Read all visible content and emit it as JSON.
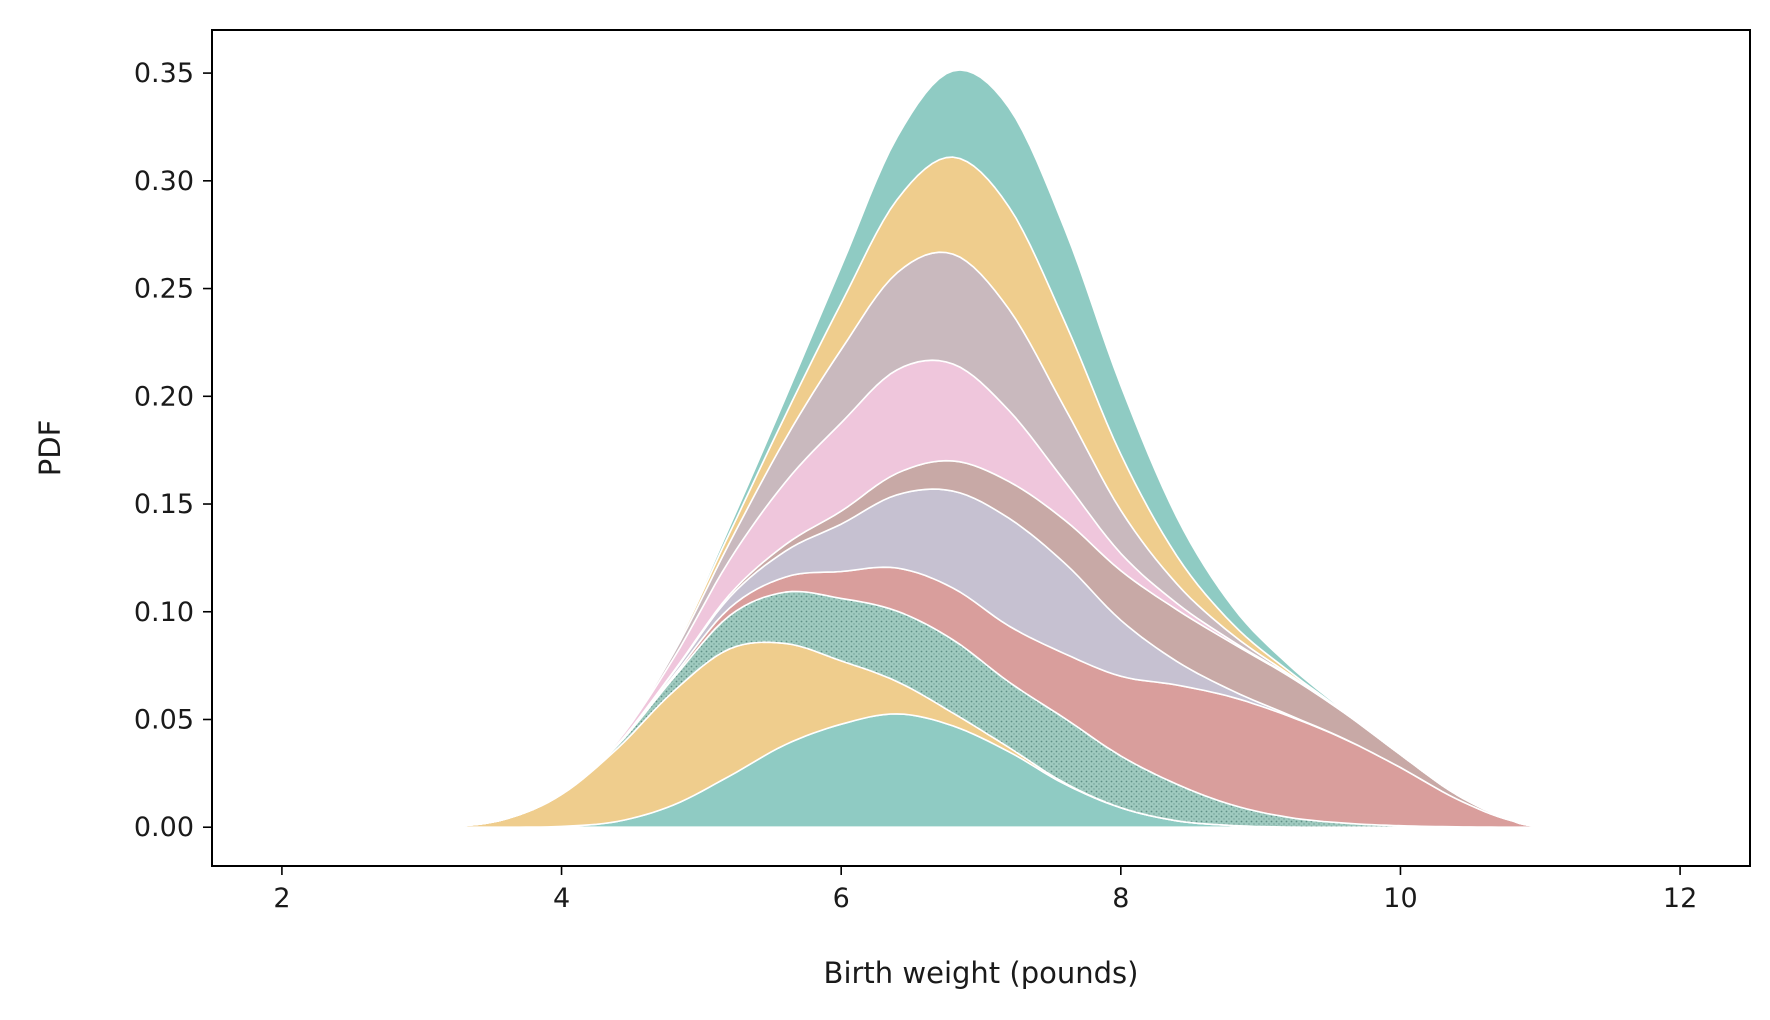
{
  "chart_data": {
    "type": "area",
    "stacked": true,
    "title": "",
    "xlabel": "Birth weight (pounds)",
    "ylabel": "PDF",
    "xlim": [
      1.5,
      12.5
    ],
    "ylim": [
      -0.018,
      0.37
    ],
    "xticks": [
      2,
      4,
      6,
      8,
      10,
      12
    ],
    "yticks": [
      0.0,
      0.05,
      0.1,
      0.15,
      0.2,
      0.25,
      0.3,
      0.35
    ],
    "ytick_format": 2,
    "grid": false,
    "legend": "none",
    "x": [
      3.2,
      3.6,
      4.0,
      4.4,
      4.8,
      5.2,
      5.6,
      6.0,
      6.4,
      6.8,
      7.2,
      7.6,
      8.0,
      8.4,
      8.8,
      9.2,
      9.6,
      10.0,
      10.4,
      10.8,
      11.0
    ],
    "series": [
      {
        "color": "#8fcbc3",
        "values": [
          0,
          0,
          0.0004,
          0.0027,
          0.0103,
          0.0237,
          0.0383,
          0.0478,
          0.0526,
          0.047,
          0.035,
          0.02,
          0.009,
          0.003,
          0.0008,
          0.0001,
          0,
          0,
          0,
          0,
          0
        ]
      },
      {
        "color": "#efcd8d",
        "values": [
          0.0003,
          0.0038,
          0.0148,
          0.0339,
          0.0527,
          0.059,
          0.047,
          0.0294,
          0.015,
          0.006,
          0.002,
          0.0005,
          0.0001,
          0,
          0,
          0,
          0,
          0,
          0,
          0,
          0
        ]
      },
      {
        "color": "#9fcabf",
        "texture": "dots",
        "values": [
          0,
          0,
          0.0001,
          0.0014,
          0.0062,
          0.0154,
          0.0238,
          0.029,
          0.0327,
          0.034,
          0.0304,
          0.03,
          0.024,
          0.017,
          0.0095,
          0.0045,
          0.0019,
          0.0007,
          0.0002,
          0,
          0
        ]
      },
      {
        "color": "#d99e9c",
        "values": [
          0,
          0,
          0,
          0.0002,
          0.001,
          0.0035,
          0.007,
          0.0125,
          0.02,
          0.024,
          0.026,
          0.03,
          0.037,
          0.046,
          0.05,
          0.047,
          0.039,
          0.027,
          0.013,
          0.003,
          0.0004
        ]
      },
      {
        "color": "#c6c1d1",
        "values": [
          0,
          0,
          0,
          0.0003,
          0.0016,
          0.005,
          0.012,
          0.022,
          0.034,
          0.045,
          0.05,
          0.042,
          0.026,
          0.011,
          0.003,
          0.0006,
          0.0001,
          0,
          0,
          0,
          0
        ]
      },
      {
        "color": "#c8a9a6",
        "values": [
          0,
          0,
          0,
          0.0001,
          0.0004,
          0.0012,
          0.003,
          0.006,
          0.01,
          0.014,
          0.017,
          0.02,
          0.023,
          0.024,
          0.022,
          0.018,
          0.012,
          0.006,
          0.002,
          0.0004,
          0.0001
        ]
      },
      {
        "color": "#efc6dc",
        "values": [
          0,
          0,
          0.0001,
          0.0013,
          0.0061,
          0.016,
          0.029,
          0.041,
          0.048,
          0.045,
          0.033,
          0.018,
          0.008,
          0.003,
          0.001,
          0.0003,
          0,
          0,
          0,
          0,
          0
        ]
      },
      {
        "color": "#c9b9be",
        "values": [
          0,
          0,
          0,
          0.0004,
          0.0024,
          0.008,
          0.02,
          0.034,
          0.045,
          0.051,
          0.047,
          0.034,
          0.02,
          0.009,
          0.003,
          0.0007,
          0.0001,
          0,
          0,
          0,
          0
        ]
      },
      {
        "color": "#efcd8d",
        "values": [
          0,
          0,
          0,
          0.0002,
          0.0012,
          0.0045,
          0.011,
          0.0215,
          0.034,
          0.045,
          0.0475,
          0.04,
          0.026,
          0.013,
          0.005,
          0.0014,
          0.0003,
          0,
          0,
          0,
          0
        ]
      },
      {
        "color": "#8fcbc3",
        "values": [
          0,
          0,
          0,
          0.0001,
          0.0008,
          0.003,
          0.008,
          0.017,
          0.029,
          0.04,
          0.046,
          0.043,
          0.032,
          0.018,
          0.008,
          0.0028,
          0.0007,
          0.0001,
          0,
          0,
          0
        ]
      }
    ]
  }
}
